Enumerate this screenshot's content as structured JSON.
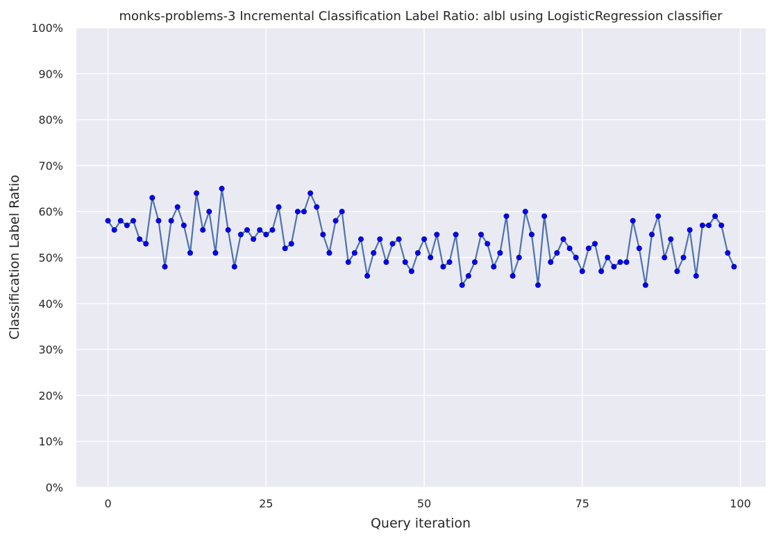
{
  "chart_data": {
    "type": "line",
    "title": "monks-problems-3 Incremental Classification Label Ratio: albl using LogisticRegression classifier",
    "xlabel": "Query iteration",
    "ylabel": "Classification Label Ratio",
    "xlim": [
      -5,
      104
    ],
    "ylim": [
      0,
      100
    ],
    "x_ticks": [
      0,
      25,
      50,
      75,
      100
    ],
    "x_tick_labels": [
      "0",
      "25",
      "50",
      "75",
      "100"
    ],
    "y_ticks": [
      0,
      10,
      20,
      30,
      40,
      50,
      60,
      70,
      80,
      90,
      100
    ],
    "y_tick_labels": [
      "0%",
      "10%",
      "20%",
      "30%",
      "40%",
      "50%",
      "60%",
      "70%",
      "80%",
      "90%",
      "100%"
    ],
    "grid": true,
    "colors": {
      "background": "#eaeaf2",
      "grid": "#ffffff",
      "line": "#4c72b0",
      "marker": "#0000ff",
      "marker_edge": "#00008b"
    },
    "x": [
      0,
      1,
      2,
      3,
      4,
      5,
      6,
      7,
      8,
      9,
      10,
      11,
      12,
      13,
      14,
      15,
      16,
      17,
      18,
      19,
      20,
      21,
      22,
      23,
      24,
      25,
      26,
      27,
      28,
      29,
      30,
      31,
      32,
      33,
      34,
      35,
      36,
      37,
      38,
      39,
      40,
      41,
      42,
      43,
      44,
      45,
      46,
      47,
      48,
      49,
      50,
      51,
      52,
      53,
      54,
      55,
      56,
      57,
      58,
      59,
      60,
      61,
      62,
      63,
      64,
      65,
      66,
      67,
      68,
      69,
      70,
      71,
      72,
      73,
      74,
      75,
      76,
      77,
      78,
      79,
      80,
      81,
      82,
      83,
      84,
      85,
      86,
      87,
      88,
      89,
      90,
      91,
      92,
      93,
      94,
      95,
      96,
      97,
      98,
      99
    ],
    "series": [
      {
        "values": [
          58,
          56,
          58,
          57,
          58,
          54,
          53,
          63,
          58,
          48,
          58,
          61,
          57,
          51,
          64,
          56,
          60,
          51,
          65,
          56,
          48,
          55,
          56,
          54,
          56,
          55,
          56,
          61,
          52,
          53,
          60,
          60,
          64,
          61,
          55,
          51,
          58,
          60,
          49,
          51,
          54,
          46,
          51,
          54,
          49,
          53,
          54,
          49,
          47,
          51,
          54,
          50,
          55,
          48,
          49,
          55,
          44,
          46,
          49,
          55,
          53,
          48,
          51,
          59,
          46,
          50,
          60,
          55,
          44,
          59,
          49,
          51,
          54,
          52,
          50,
          47,
          52,
          53,
          47,
          50,
          48,
          49,
          49,
          58,
          52,
          44,
          55,
          59,
          50,
          54,
          47,
          50,
          56,
          46,
          57,
          57,
          59,
          57,
          51,
          48
        ]
      }
    ]
  }
}
